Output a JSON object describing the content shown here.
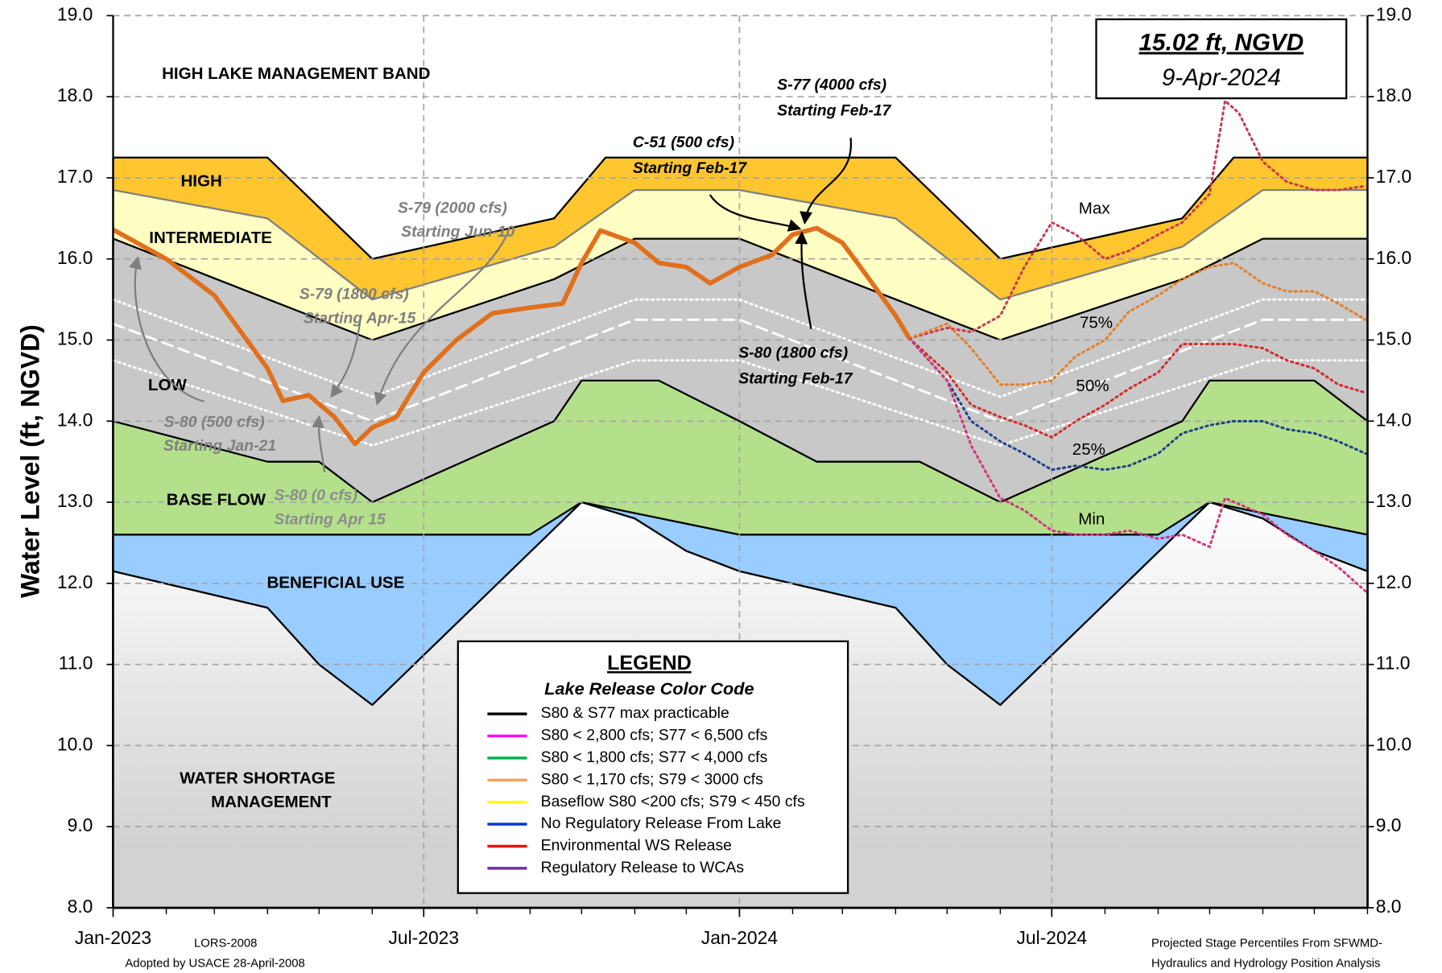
{
  "chart_data": {
    "type": "line",
    "ylabel": "Water Level (ft, NGVD)",
    "xlim": [
      "2023-01-01",
      "2025-01-01"
    ],
    "xticks": [
      {
        "value": "2023-01-01",
        "label": "Jan-2023"
      },
      {
        "value": "2023-07-01",
        "label": "Jul-2023"
      },
      {
        "value": "2024-01-01",
        "label": "Jan-2024"
      },
      {
        "value": "2024-07-01",
        "label": "Jul-2024"
      }
    ],
    "xminor_ticks": [
      "2023-02-01",
      "2023-03-01",
      "2023-04-01",
      "2023-05-01",
      "2023-06-01",
      "2023-08-01",
      "2023-09-01",
      "2023-10-01",
      "2023-11-01",
      "2023-12-01",
      "2024-02-01",
      "2024-03-01",
      "2024-04-01",
      "2024-05-01",
      "2024-06-01",
      "2024-08-01",
      "2024-09-01",
      "2024-10-01",
      "2024-11-01",
      "2024-12-01",
      "2025-01-01"
    ],
    "ylim": [
      8,
      19
    ],
    "yticks": [
      {
        "value": 8,
        "label": "8.0"
      },
      {
        "value": 9,
        "label": "9.0"
      },
      {
        "value": 10,
        "label": "10.0"
      },
      {
        "value": 11,
        "label": "11.0"
      },
      {
        "value": 12,
        "label": "12.0"
      },
      {
        "value": 13,
        "label": "13.0"
      },
      {
        "value": 14,
        "label": "14.0"
      },
      {
        "value": 15,
        "label": "15.0"
      },
      {
        "value": 16,
        "label": "16.0"
      },
      {
        "value": 17,
        "label": "17.0"
      },
      {
        "value": 18,
        "label": "18.0"
      },
      {
        "value": 19,
        "label": "19.0"
      }
    ],
    "y2lim": [
      8,
      19
    ],
    "y2ticks": [
      {
        "value": 8,
        "label": "8.0"
      },
      {
        "value": 9,
        "label": "9.0"
      },
      {
        "value": 10,
        "label": "10.0"
      },
      {
        "value": 11,
        "label": "11.0"
      },
      {
        "value": 12,
        "label": "12.0"
      },
      {
        "value": 13,
        "label": "13.0"
      },
      {
        "value": 14,
        "label": "14.0"
      },
      {
        "value": 15,
        "label": "15.0"
      },
      {
        "value": 16,
        "label": "16.0"
      },
      {
        "value": 17,
        "label": "17.0"
      },
      {
        "value": 18,
        "label": "18.0"
      },
      {
        "value": 19,
        "label": "19.0"
      }
    ],
    "grid": true,
    "upper_band_label": "HIGH LAKE MANAGEMENT BAND",
    "zones": [
      {
        "label": [
          "HIGH"
        ],
        "color": "#FFC62F",
        "stroke": "#000000",
        "x": [
          "2023-01-01",
          "2023-04-01",
          "2023-06-01",
          "2023-09-15",
          "2023-10-15",
          "2024-04-01",
          "2024-06-01",
          "2024-09-15",
          "2024-10-15",
          "2025-01-01"
        ],
        "values": [
          17.25,
          17.25,
          16.0,
          16.5,
          17.25,
          17.25,
          16.0,
          16.5,
          17.25,
          17.25
        ]
      },
      {
        "label": [
          "INTERMEDIATE"
        ],
        "color": "#FFFFC4",
        "stroke": "#808080",
        "x": [
          "2023-01-01",
          "2023-04-01",
          "2023-06-01",
          "2023-09-15",
          "2023-11-01",
          "2024-01-01",
          "2024-04-01",
          "2024-06-01",
          "2024-09-15",
          "2024-11-01",
          "2025-01-01"
        ],
        "values": [
          16.85,
          16.5,
          15.5,
          16.15,
          16.85,
          16.85,
          16.5,
          15.5,
          16.15,
          16.85,
          16.85
        ]
      },
      {
        "label": [
          "LOW"
        ],
        "color": "#C8C8C8",
        "stroke": "#000000",
        "x": [
          "2023-01-01",
          "2023-06-01",
          "2023-09-15",
          "2023-11-01",
          "2024-01-01",
          "2024-06-01",
          "2024-09-15",
          "2024-11-01",
          "2025-01-01"
        ],
        "values": [
          16.25,
          15.0,
          15.75,
          16.25,
          16.25,
          15.0,
          15.75,
          16.25,
          16.25
        ]
      },
      {
        "label": [
          "BASE FLOW"
        ],
        "color": "#B4E08C",
        "stroke": "#000000",
        "x": [
          "2023-01-01",
          "2023-04-01",
          "2023-05-01",
          "2023-06-01",
          "2023-09-15",
          "2023-10-01",
          "2023-11-15",
          "2024-01-01",
          "2024-02-15",
          "2024-04-15",
          "2024-06-01",
          "2024-09-15",
          "2024-10-01",
          "2024-12-01",
          "2025-01-01"
        ],
        "values": [
          14.0,
          13.5,
          13.5,
          13.0,
          14.0,
          14.5,
          14.5,
          14.0,
          13.5,
          13.5,
          13.0,
          14.0,
          14.5,
          14.5,
          14.0
        ]
      },
      {
        "label": [
          "BENEFICIAL USE"
        ],
        "color": "#99CCFF",
        "stroke": "#000000",
        "x": [
          "2023-01-01",
          "2023-09-01",
          "2023-10-01",
          "2024-01-01",
          "2024-09-01",
          "2024-10-01",
          "2025-01-01"
        ],
        "values": [
          12.6,
          12.6,
          13.0,
          12.6,
          12.6,
          13.0,
          12.6
        ]
      },
      {
        "label": [
          "WATER SHORTAGE",
          "MANAGEMENT"
        ],
        "color": "#D2D2D2",
        "stroke": "#000000",
        "fill": "gradient",
        "x": [
          "2023-01-01",
          "2023-04-01",
          "2023-05-01",
          "2023-06-01",
          "2023-10-01",
          "2023-11-01",
          "2023-12-01",
          "2024-01-01",
          "2024-04-01",
          "2024-05-01",
          "2024-06-01",
          "2024-10-01",
          "2024-11-01",
          "2024-12-01",
          "2025-01-01"
        ],
        "values": [
          12.15,
          11.7,
          11.0,
          10.5,
          13.0,
          12.8,
          12.4,
          12.15,
          11.7,
          11.0,
          10.5,
          13.0,
          12.8,
          12.4,
          12.15
        ]
      }
    ],
    "sub_bands": [
      {
        "color": "#FFFFFF",
        "style": "dotted",
        "x": [
          "2023-01-01",
          "2023-06-01",
          "2023-11-01",
          "2024-01-01",
          "2024-06-01",
          "2024-11-01",
          "2025-01-01"
        ],
        "values": [
          15.5,
          14.3,
          15.5,
          15.5,
          14.3,
          15.5,
          15.5
        ]
      },
      {
        "color": "#FFFFFF",
        "style": "dashed",
        "x": [
          "2023-01-01",
          "2023-06-01",
          "2023-11-01",
          "2024-01-01",
          "2024-06-01",
          "2024-11-01",
          "2025-01-01"
        ],
        "values": [
          15.2,
          14.0,
          15.25,
          15.25,
          14.0,
          15.25,
          15.25
        ]
      },
      {
        "color": "#FFFFFF",
        "style": "dotted",
        "x": [
          "2023-01-01",
          "2023-06-01",
          "2023-11-01",
          "2024-01-01",
          "2024-06-01",
          "2024-11-01",
          "2025-01-01"
        ],
        "values": [
          14.75,
          13.7,
          14.75,
          14.75,
          13.7,
          14.75,
          14.75
        ]
      }
    ],
    "observed": {
      "color": "#E0701E",
      "x": [
        "2023-01-01",
        "2023-02-01",
        "2023-03-01",
        "2023-04-01",
        "2023-04-10",
        "2023-04-25",
        "2023-05-10",
        "2023-05-22",
        "2023-06-01",
        "2023-06-15",
        "2023-07-01",
        "2023-07-20",
        "2023-08-10",
        "2023-09-01",
        "2023-09-20",
        "2023-10-01",
        "2023-10-12",
        "2023-11-01",
        "2023-11-15",
        "2023-12-01",
        "2023-12-15",
        "2024-01-01",
        "2024-01-20",
        "2024-02-01",
        "2024-02-15",
        "2024-03-01",
        "2024-03-15",
        "2024-04-01",
        "2024-04-09"
      ],
      "values": [
        16.36,
        16.0,
        15.55,
        14.65,
        14.25,
        14.32,
        14.05,
        13.72,
        13.92,
        14.05,
        14.6,
        15.0,
        15.33,
        15.4,
        15.45,
        15.95,
        16.35,
        16.2,
        15.95,
        15.9,
        15.7,
        15.9,
        16.05,
        16.3,
        16.38,
        16.2,
        15.8,
        15.3,
        15.02
      ]
    },
    "series": [
      {
        "name": "Max",
        "color": "#C8384F",
        "style": "dotted",
        "x": [
          "2024-04-09",
          "2024-05-01",
          "2024-05-15",
          "2024-06-01",
          "2024-06-15",
          "2024-07-01",
          "2024-07-15",
          "2024-08-01",
          "2024-08-15",
          "2024-09-01",
          "2024-09-15",
          "2024-10-01",
          "2024-10-10",
          "2024-10-18",
          "2024-11-01",
          "2024-11-15",
          "2024-12-01",
          "2024-12-15",
          "2024-12-31"
        ],
        "values": [
          15.02,
          15.15,
          15.1,
          15.3,
          15.9,
          16.45,
          16.3,
          16.0,
          16.1,
          16.3,
          16.45,
          16.8,
          17.95,
          17.8,
          17.2,
          16.95,
          16.85,
          16.85,
          16.9
        ]
      },
      {
        "name": "75%",
        "color": "#E67E22",
        "style": "dotted",
        "x": [
          "2024-04-09",
          "2024-05-01",
          "2024-05-15",
          "2024-06-01",
          "2024-06-15",
          "2024-07-01",
          "2024-07-15",
          "2024-08-01",
          "2024-08-15",
          "2024-09-01",
          "2024-09-15",
          "2024-10-01",
          "2024-10-15",
          "2024-11-01",
          "2024-11-15",
          "2024-12-01",
          "2024-12-15",
          "2024-12-31"
        ],
        "values": [
          15.02,
          15.2,
          14.9,
          14.45,
          14.45,
          14.5,
          14.8,
          15.0,
          15.35,
          15.55,
          15.75,
          15.9,
          15.95,
          15.7,
          15.6,
          15.6,
          15.45,
          15.25
        ]
      },
      {
        "name": "50%",
        "color": "#D42A2A",
        "style": "dotted",
        "x": [
          "2024-04-09",
          "2024-05-01",
          "2024-05-15",
          "2024-06-01",
          "2024-06-15",
          "2024-07-01",
          "2024-07-15",
          "2024-08-01",
          "2024-08-15",
          "2024-09-01",
          "2024-09-15",
          "2024-10-01",
          "2024-10-15",
          "2024-11-01",
          "2024-11-15",
          "2024-12-01",
          "2024-12-15",
          "2024-12-31"
        ],
        "values": [
          15.02,
          14.6,
          14.2,
          14.05,
          13.95,
          13.8,
          14.0,
          14.2,
          14.4,
          14.6,
          14.95,
          14.95,
          14.95,
          14.9,
          14.75,
          14.65,
          14.45,
          14.35
        ]
      },
      {
        "name": "25%",
        "color": "#1F3F8F",
        "style": "dotted",
        "x": [
          "2024-04-09",
          "2024-05-01",
          "2024-05-15",
          "2024-06-01",
          "2024-06-15",
          "2024-07-01",
          "2024-07-15",
          "2024-08-01",
          "2024-08-15",
          "2024-09-01",
          "2024-09-15",
          "2024-10-01",
          "2024-10-15",
          "2024-11-01",
          "2024-11-15",
          "2024-12-01",
          "2024-12-15",
          "2024-12-31"
        ],
        "values": [
          15.02,
          14.5,
          14.0,
          13.75,
          13.6,
          13.4,
          13.45,
          13.4,
          13.45,
          13.6,
          13.85,
          13.95,
          14.0,
          14.0,
          13.9,
          13.85,
          13.75,
          13.6
        ]
      },
      {
        "name": "Min",
        "color": "#D6337A",
        "style": "dotted",
        "x": [
          "2024-04-09",
          "2024-05-01",
          "2024-05-15",
          "2024-06-01",
          "2024-06-15",
          "2024-07-01",
          "2024-07-15",
          "2024-08-01",
          "2024-08-15",
          "2024-09-01",
          "2024-09-15",
          "2024-10-01",
          "2024-10-10",
          "2024-11-01",
          "2024-11-15",
          "2024-12-01",
          "2024-12-15",
          "2024-12-31"
        ],
        "values": [
          15.02,
          14.5,
          13.7,
          13.05,
          12.9,
          12.65,
          12.6,
          12.6,
          12.65,
          12.55,
          12.6,
          12.45,
          13.05,
          12.85,
          12.6,
          12.4,
          12.2,
          11.9
        ]
      }
    ],
    "annotations": [
      {
        "lines": [
          "S-79 (2000 cfs)",
          "Starting Jun-10"
        ],
        "color": "#7F7F7F"
      },
      {
        "lines": [
          "S-79 (1800 cfs)",
          "Starting Apr-15"
        ],
        "color": "#7F7F7F"
      },
      {
        "lines": [
          "S-80 (500 cfs)",
          "Starting Jan-21"
        ],
        "color": "#7F7F7F"
      },
      {
        "lines": [
          "S-80 (0 cfs)",
          "Starting Apr 15"
        ],
        "color": "#8C8C8C"
      },
      {
        "lines": [
          "C-51 (500 cfs)",
          "Starting Feb-17"
        ],
        "color": "#000000"
      },
      {
        "lines": [
          "S-77 (4000 cfs)",
          "Starting Feb-17"
        ],
        "color": "#000000"
      },
      {
        "lines": [
          "S-80 (1800 cfs)",
          "Starting Feb-17"
        ],
        "color": "#000000"
      }
    ],
    "current_stage": {
      "value": 15.02,
      "label": "15.02 ft, NGVD"
    },
    "current_date": {
      "value": "2024-04-09",
      "label": "9-Apr-2024"
    },
    "legend": {
      "title": "LEGEND",
      "subtitle": "Lake Release Color Code",
      "items": [
        {
          "label": "S80 & S77 max practicable",
          "color": "#000000"
        },
        {
          "label": "S80 < 2,800 cfs; S77 < 6,500 cfs",
          "color": "#FF00FF"
        },
        {
          "label": "S80 < 1,800 cfs; S77 < 4,000 cfs",
          "color": "#00B050"
        },
        {
          "label": "S80 < 1,170 cfs; S79 < 3000 cfs",
          "color": "#F4A460"
        },
        {
          "label": "Baseflow S80 <200 cfs; S79 < 450 cfs",
          "color": "#FFFF00"
        },
        {
          "label": "No Regulatory Release From Lake",
          "color": "#0033CC"
        },
        {
          "label": "Environmental WS Release",
          "color": "#FF0000"
        },
        {
          "label": "Regulatory Release to WCAs",
          "color": "#7030A0"
        }
      ]
    },
    "notes": {
      "left": [
        "LORS-2008",
        "Adopted by USACE 28-April-2008"
      ],
      "right": [
        "Projected Stage Percentiles From SFWMD-",
        "Hydraulics and Hydrology Position Analysis"
      ]
    }
  }
}
